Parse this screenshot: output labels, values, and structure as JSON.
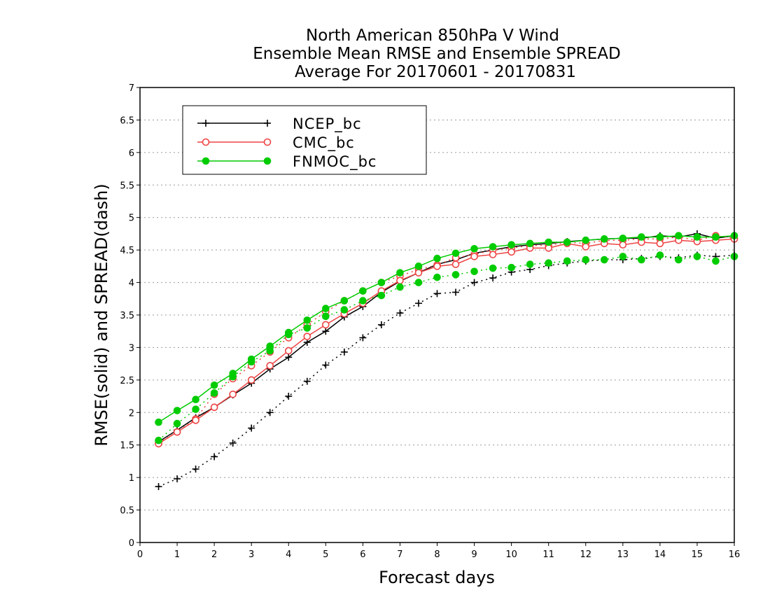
{
  "chart_data": {
    "type": "line",
    "title": [
      "North American 850hPa V Wind",
      "Ensemble Mean RMSE and Ensemble SPREAD",
      "Average For 20170601 - 20170831"
    ],
    "xlabel": "Forecast days",
    "ylabel": "RMSE(solid) and SPREAD(dash)",
    "xlim": [
      0,
      16
    ],
    "ylim": [
      0,
      7
    ],
    "x_ticks": [
      "0",
      "1",
      "2",
      "3",
      "4",
      "5",
      "6",
      "7",
      "8",
      "9",
      "10",
      "11",
      "12",
      "13",
      "14",
      "15",
      "16"
    ],
    "y_ticks": [
      "0",
      "0.5",
      "1",
      "1.5",
      "2",
      "2.5",
      "3",
      "3.5",
      "4",
      "4.5",
      "5",
      "5.5",
      "6",
      "6.5",
      "7"
    ],
    "grid": "horizontal dotted",
    "legend_position": "top-left",
    "x": [
      0.5,
      1,
      1.5,
      2,
      2.5,
      3,
      3.5,
      4,
      4.5,
      5,
      5.5,
      6,
      6.5,
      7,
      7.5,
      8,
      8.5,
      9,
      9.5,
      10,
      10.5,
      11,
      11.5,
      12,
      12.5,
      13,
      13.5,
      14,
      14.5,
      15,
      15.5,
      16
    ],
    "series": [
      {
        "name": "NCEP_bc",
        "color": "#000000",
        "marker": "plus",
        "rmse": [
          1.55,
          1.73,
          1.92,
          2.08,
          2.27,
          2.45,
          2.67,
          2.85,
          3.08,
          3.25,
          3.47,
          3.63,
          3.85,
          4.02,
          4.15,
          4.28,
          4.35,
          4.45,
          4.5,
          4.55,
          4.58,
          4.6,
          4.63,
          4.65,
          4.67,
          4.68,
          4.68,
          4.72,
          4.7,
          4.75,
          4.68,
          4.72
        ],
        "spread": [
          0.86,
          0.98,
          1.13,
          1.32,
          1.53,
          1.76,
          2.0,
          2.25,
          2.48,
          2.73,
          2.93,
          3.15,
          3.35,
          3.53,
          3.68,
          3.83,
          3.85,
          4.0,
          4.07,
          4.16,
          4.2,
          4.26,
          4.3,
          4.33,
          4.35,
          4.35,
          4.37,
          4.4,
          4.38,
          4.42,
          4.4,
          4.42
        ]
      },
      {
        "name": "CMC_bc",
        "color": "#ee4444",
        "marker": "open-circle",
        "rmse": [
          1.52,
          1.7,
          1.88,
          2.08,
          2.28,
          2.5,
          2.72,
          2.95,
          3.17,
          3.35,
          3.52,
          3.68,
          3.87,
          4.03,
          4.15,
          4.25,
          4.28,
          4.4,
          4.43,
          4.47,
          4.53,
          4.53,
          4.6,
          4.55,
          4.6,
          4.58,
          4.62,
          4.6,
          4.65,
          4.63,
          4.65,
          4.67
        ],
        "spread": [
          1.53,
          1.7,
          1.9,
          2.28,
          2.52,
          2.72,
          2.93,
          3.15,
          3.35,
          3.55,
          3.72,
          3.87,
          4.0,
          4.1,
          4.2,
          4.27,
          4.38,
          4.43,
          4.5,
          4.53,
          4.57,
          4.57,
          4.62,
          4.6,
          4.65,
          4.65,
          4.67,
          4.67,
          4.7,
          4.65,
          4.72,
          4.68
        ]
      },
      {
        "name": "FNMOC_bc",
        "color": "#00cc00",
        "marker": "filled-circle",
        "rmse": [
          1.85,
          2.03,
          2.2,
          2.42,
          2.6,
          2.82,
          3.02,
          3.23,
          3.42,
          3.6,
          3.72,
          3.87,
          4.0,
          4.15,
          4.25,
          4.37,
          4.45,
          4.52,
          4.55,
          4.58,
          4.6,
          4.62,
          4.62,
          4.65,
          4.67,
          4.68,
          4.7,
          4.7,
          4.72,
          4.7,
          4.7,
          4.72
        ],
        "spread": [
          1.57,
          1.83,
          2.05,
          2.3,
          2.55,
          2.78,
          2.95,
          3.2,
          3.3,
          3.48,
          3.58,
          3.72,
          3.8,
          3.93,
          4.0,
          4.08,
          4.12,
          4.17,
          4.22,
          4.23,
          4.28,
          4.3,
          4.33,
          4.35,
          4.35,
          4.4,
          4.35,
          4.42,
          4.35,
          4.4,
          4.33,
          4.4
        ]
      }
    ]
  }
}
